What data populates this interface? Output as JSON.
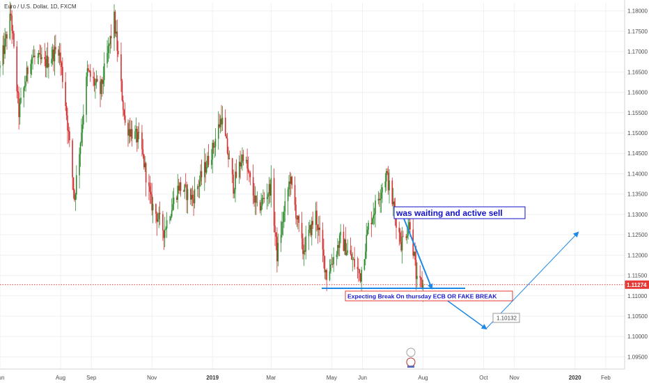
{
  "header": {
    "symbol": "Euro / U.S. Dollar, 1D, FXCM"
  },
  "colors": {
    "up": "#2e8b2e",
    "down": "#d32f2f",
    "grid": "#eef0f3",
    "price_line": "#e53935",
    "trend_arrow": "#1e88e5",
    "level_line": "#1e88e5",
    "annotation_text": "#1010c8",
    "annotation_border": "#1010c8",
    "break_text": "#1a1ad0",
    "break_border": "#e53935",
    "price_tag_bg": "#e53935"
  },
  "annotations": {
    "sell_note": "was waiting and active sell",
    "break_note": "Expecting Break On thursday ECB OR FAKE BREAK",
    "target_label": "1.10132",
    "current_price": "1.11274"
  },
  "chart_data": {
    "type": "candlestick",
    "title": "Euro / U.S. Dollar, 1D, FXCM",
    "y_axis_labels": [
      "1.18000",
      "1.17500",
      "1.17000",
      "1.16500",
      "1.16000",
      "1.15500",
      "1.15000",
      "1.14500",
      "1.14000",
      "1.13500",
      "1.13000",
      "1.12500",
      "1.12000",
      "1.11500",
      "1.11000",
      "1.10500",
      "1.10000",
      "1.09500"
    ],
    "ylim": [
      1.092,
      1.182
    ],
    "x_axis_labels": [
      "Jun",
      "Aug",
      "Sep",
      "Nov",
      "2019",
      "Mar",
      "May",
      "Jun",
      "Aug",
      "Oct",
      "Nov",
      "2020",
      "Feb"
    ],
    "x_range": [
      "2018-06-01",
      "2020-02-20"
    ],
    "current_price": 1.11274,
    "price_waypoints": [
      [
        "2018-06-01",
        1.166
      ],
      [
        "2018-06-12",
        1.179
      ],
      [
        "2018-06-20",
        1.155
      ],
      [
        "2018-07-02",
        1.169
      ],
      [
        "2018-07-16",
        1.167
      ],
      [
        "2018-07-30",
        1.171
      ],
      [
        "2018-08-05",
        1.16
      ],
      [
        "2018-08-15",
        1.134
      ],
      [
        "2018-08-28",
        1.165
      ],
      [
        "2018-09-10",
        1.16
      ],
      [
        "2018-09-24",
        1.178
      ],
      [
        "2018-10-05",
        1.152
      ],
      [
        "2018-10-20",
        1.148
      ],
      [
        "2018-10-31",
        1.133
      ],
      [
        "2018-11-13",
        1.126
      ],
      [
        "2018-11-28",
        1.137
      ],
      [
        "2018-12-12",
        1.134
      ],
      [
        "2019-01-01",
        1.146
      ],
      [
        "2019-01-10",
        1.154
      ],
      [
        "2019-01-22",
        1.137
      ],
      [
        "2019-02-01",
        1.145
      ],
      [
        "2019-02-15",
        1.131
      ],
      [
        "2019-03-01",
        1.137
      ],
      [
        "2019-03-07",
        1.12
      ],
      [
        "2019-03-20",
        1.139
      ],
      [
        "2019-04-02",
        1.121
      ],
      [
        "2019-04-15",
        1.13
      ],
      [
        "2019-04-26",
        1.115
      ],
      [
        "2019-05-10",
        1.124
      ],
      [
        "2019-05-30",
        1.115
      ],
      [
        "2019-06-07",
        1.127
      ],
      [
        "2019-06-25",
        1.14
      ],
      [
        "2019-07-10",
        1.123
      ],
      [
        "2019-07-19",
        1.128
      ],
      [
        "2019-07-26",
        1.113
      ],
      [
        "2019-08-01",
        1.1127
      ]
    ]
  }
}
